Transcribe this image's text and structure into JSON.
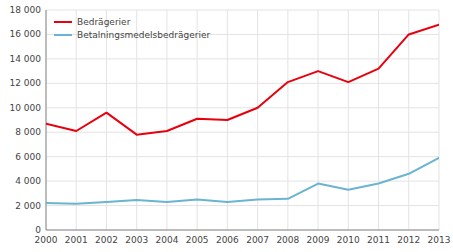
{
  "chart_data": {
    "type": "line",
    "x": [
      2000,
      2001,
      2002,
      2003,
      2004,
      2005,
      2006,
      2007,
      2008,
      2009,
      2010,
      2011,
      2012,
      2013
    ],
    "series": [
      {
        "name": "Bedrägerier",
        "color": "#e8000d",
        "values": [
          8700,
          8100,
          9600,
          7800,
          8100,
          9100,
          9000,
          10000,
          12100,
          13000,
          12100,
          13200,
          16000,
          16800
        ]
      },
      {
        "name": "Betalningsmedelsbedrägerier",
        "color": "#6ab4d2",
        "values": [
          2200,
          2150,
          2300,
          2450,
          2300,
          2500,
          2300,
          2500,
          2550,
          3800,
          3300,
          3800,
          4600,
          5900
        ]
      }
    ],
    "xlim": [
      2000,
      2013
    ],
    "xticks": [
      2000,
      2001,
      2002,
      2003,
      2004,
      2005,
      2006,
      2007,
      2008,
      2009,
      2010,
      2011,
      2012,
      2013
    ],
    "ylim": [
      0,
      18000
    ],
    "yticks": [
      0,
      {
        "value": 2000,
        "label": "2 000"
      },
      {
        "value": 4000,
        "label": "4 000"
      },
      {
        "value": 6000,
        "label": "6 000"
      },
      {
        "value": 8000,
        "label": "8 000"
      },
      {
        "value": 10000,
        "label": "10 000"
      },
      {
        "value": 12000,
        "label": "12 000"
      },
      {
        "value": 14000,
        "label": "14 000"
      },
      {
        "value": 16000,
        "label": "16 000"
      },
      {
        "value": 18000,
        "label": "18 000"
      }
    ],
    "grid": true,
    "legend": "upper left"
  }
}
